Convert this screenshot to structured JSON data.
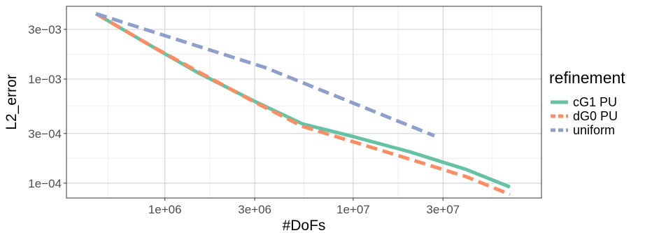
{
  "chart_data": {
    "type": "line",
    "xlabel": "#DoFs",
    "ylabel": "L2_error",
    "x_scale": "log",
    "y_scale": "log",
    "xlim": [
      300000,
      100000000
    ],
    "ylim": [
      7.2e-05,
      0.005
    ],
    "x_ticks": [
      {
        "value": 1000000,
        "label": "1e+06"
      },
      {
        "value": 3000000,
        "label": "3e+06"
      },
      {
        "value": 10000000,
        "label": "1e+07"
      },
      {
        "value": 30000000,
        "label": "3e+07"
      }
    ],
    "x_minor_ticks": [
      500000,
      1732000,
      5477000,
      17320000,
      54770000
    ],
    "y_ticks": [
      {
        "value": 0.0001,
        "label": "1e−04"
      },
      {
        "value": 0.0003,
        "label": "3e−04"
      },
      {
        "value": 0.001,
        "label": "1e−03"
      },
      {
        "value": 0.003,
        "label": "3e−03"
      }
    ],
    "y_minor_ticks": [
      5.48e-05,
      0.000173,
      0.000548,
      0.00173,
      0.00548
    ],
    "grid": true,
    "legend": {
      "title": "refinement",
      "position": "right"
    },
    "series": [
      {
        "name": "cG1 PU",
        "color": "#66c2a5",
        "dash": "solid",
        "x": [
          430000,
          850000,
          1500000,
          3000000,
          5400000,
          10000000,
          20000000,
          40000000,
          68000000
        ],
        "y": [
          0.00425,
          0.00207,
          0.00115,
          0.00061,
          0.00037,
          0.00028,
          0.0002,
          0.000135,
          9.2e-05
        ]
      },
      {
        "name": "dG0 PU",
        "color": "#fc8d62",
        "dash": "dashed",
        "x": [
          430000,
          850000,
          1500000,
          3000000,
          5400000,
          10000000,
          20000000,
          40000000,
          68000000
        ],
        "y": [
          0.00425,
          0.00207,
          0.00118,
          0.0006,
          0.00035,
          0.00025,
          0.00017,
          0.000115,
          7.8e-05
        ]
      },
      {
        "name": "uniform",
        "color": "#8da0cb",
        "dash": "dashed",
        "x": [
          430000,
          3400000,
          27000000
        ],
        "y": [
          0.00425,
          0.00129,
          0.000285
        ]
      }
    ]
  }
}
